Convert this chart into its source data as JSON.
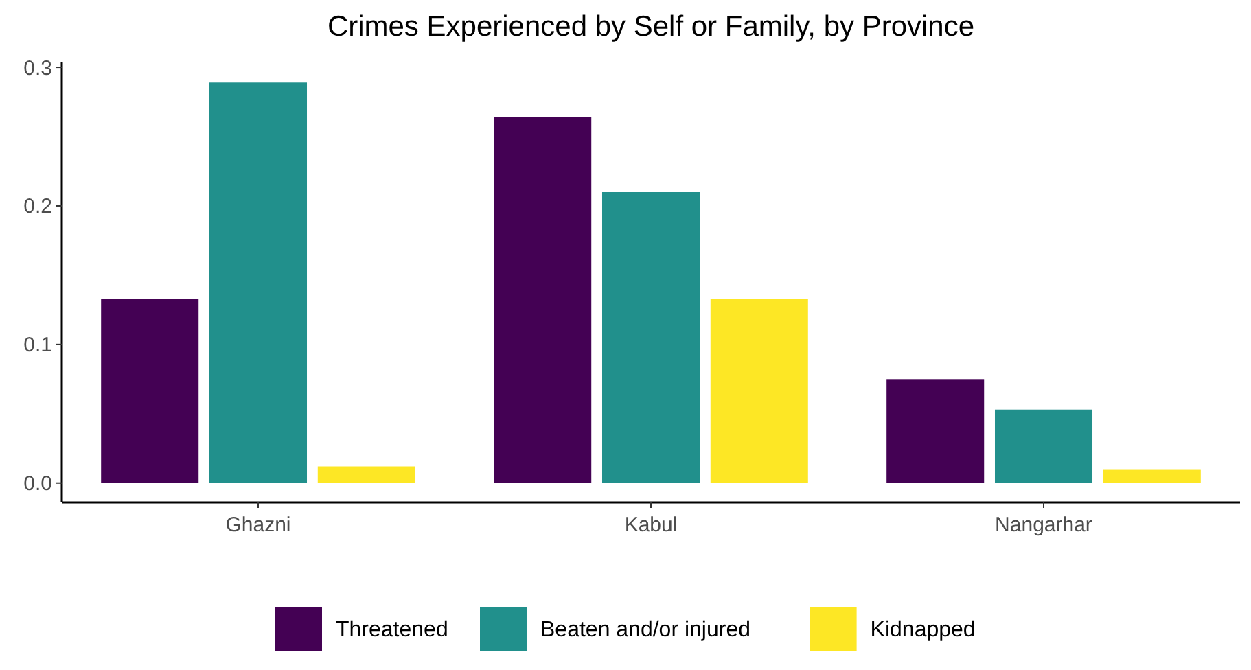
{
  "chart_data": {
    "type": "bar",
    "title": "Crimes Experienced by Self or Family, by Province",
    "categories": [
      "Ghazni",
      "Kabul",
      "Nangarhar"
    ],
    "series": [
      {
        "name": "Threatened",
        "color": "#440154",
        "values": [
          0.133,
          0.264,
          0.075
        ]
      },
      {
        "name": "Beaten and/or injured",
        "color": "#21908c",
        "values": [
          0.289,
          0.21,
          0.053
        ]
      },
      {
        "name": "Kidnapped",
        "color": "#fde725",
        "values": [
          0.012,
          0.133,
          0.01
        ]
      }
    ],
    "ylim": [
      -0.014,
      0.304
    ],
    "yticks": [
      {
        "value": 0,
        "label": "0.0"
      },
      0.1,
      0.2,
      0.3
    ],
    "grid": false,
    "legend": "bottom"
  }
}
